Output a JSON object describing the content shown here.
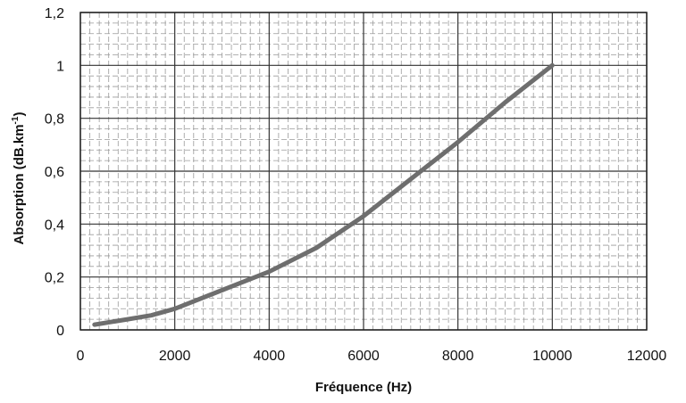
{
  "chart_data": {
    "type": "line",
    "xlabel": "Fréquence (Hz)",
    "ylabel": "Absorption (dB.km",
    "ylabel_sup": "-1",
    "ylabel_close": ")",
    "xlim": [
      0,
      12000
    ],
    "ylim": [
      0,
      1.2
    ],
    "x_ticks": [
      0,
      2000,
      4000,
      6000,
      8000,
      10000,
      12000
    ],
    "x_tick_labels": [
      "0",
      "2000",
      "4000",
      "6000",
      "8000",
      "10000",
      "12000"
    ],
    "y_ticks": [
      0,
      0.2,
      0.4,
      0.6,
      0.8,
      1,
      1.2
    ],
    "y_tick_labels": [
      "0",
      "0,2",
      "0,4",
      "0,6",
      "0,8",
      "1",
      "1,2"
    ],
    "grid": true,
    "minor_grid": true,
    "line_color": "#6e6e6e",
    "series": [
      {
        "x": [
          300,
          1000,
          1500,
          2000,
          3000,
          4000,
          5000,
          6000,
          7000,
          8000,
          9000,
          10000
        ],
        "y": [
          0.02,
          0.04,
          0.055,
          0.08,
          0.15,
          0.22,
          0.31,
          0.43,
          0.57,
          0.71,
          0.86,
          1.0
        ]
      }
    ]
  }
}
